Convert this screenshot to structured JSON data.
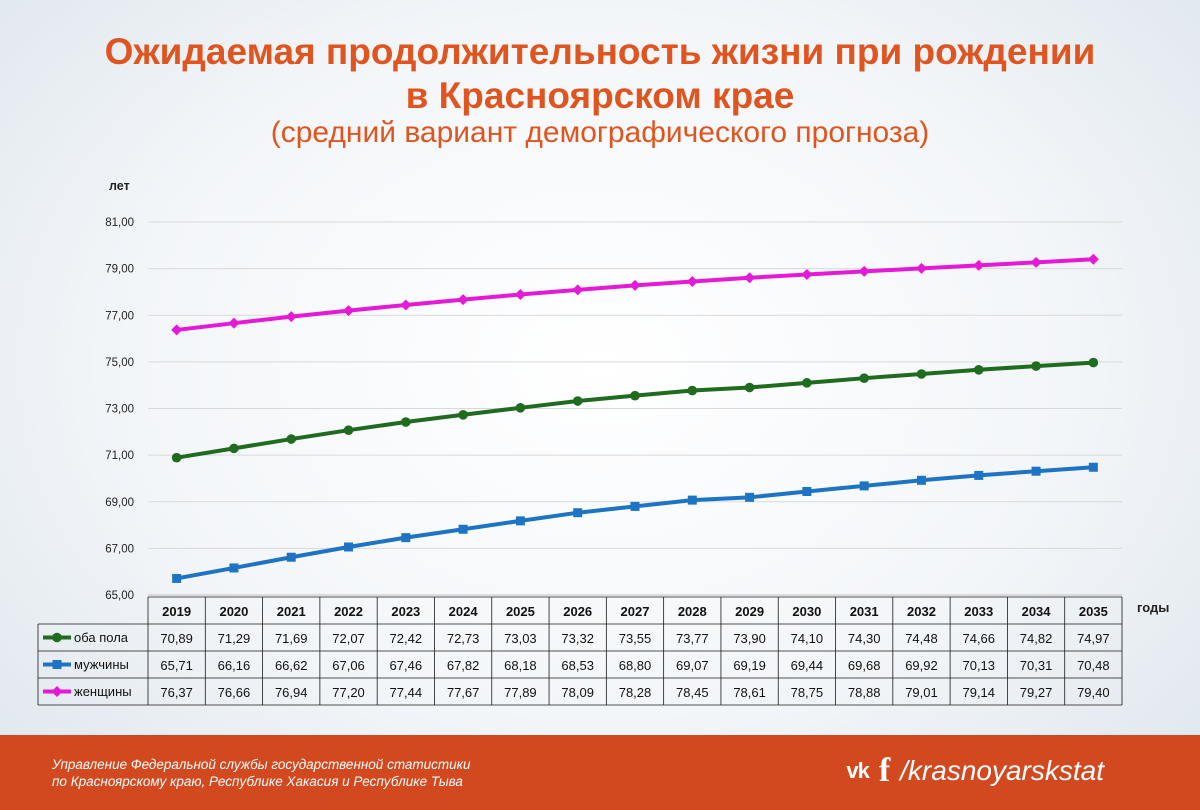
{
  "header": {
    "title_line1": "Ожидаемая продолжительность жизни при рождении",
    "title_line2": "в Красноярском крае",
    "subtitle": "(средний вариант демографического прогноза)"
  },
  "chart_data": {
    "type": "line",
    "ylabel": "лет",
    "xlabel": "годы",
    "ylim": [
      65,
      81
    ],
    "yticks": [
      "65,00",
      "67,00",
      "69,00",
      "71,00",
      "73,00",
      "75,00",
      "77,00",
      "79,00",
      "81,00"
    ],
    "categories": [
      "2019",
      "2020",
      "2021",
      "2022",
      "2023",
      "2024",
      "2025",
      "2026",
      "2027",
      "2028",
      "2029",
      "2030",
      "2031",
      "2032",
      "2033",
      "2034",
      "2035"
    ],
    "grid": true,
    "legend": "data-table",
    "series": [
      {
        "name": "оба пола",
        "color": "#1f6b1f",
        "marker": "circle",
        "values": [
          70.89,
          71.29,
          71.69,
          72.07,
          72.42,
          72.73,
          73.03,
          73.32,
          73.55,
          73.77,
          73.9,
          74.1,
          74.3,
          74.48,
          74.66,
          74.82,
          74.97
        ],
        "labels": [
          "70,89",
          "71,29",
          "71,69",
          "72,07",
          "72,42",
          "72,73",
          "73,03",
          "73,32",
          "73,55",
          "73,77",
          "73,90",
          "74,10",
          "74,30",
          "74,48",
          "74,66",
          "74,82",
          "74,97"
        ]
      },
      {
        "name": "мужчины",
        "color": "#1e74c4",
        "marker": "square",
        "values": [
          65.71,
          66.16,
          66.62,
          67.06,
          67.46,
          67.82,
          68.18,
          68.53,
          68.8,
          69.07,
          69.19,
          69.44,
          69.68,
          69.92,
          70.13,
          70.31,
          70.48
        ],
        "labels": [
          "65,71",
          "66,16",
          "66,62",
          "67,06",
          "67,46",
          "67,82",
          "68,18",
          "68,53",
          "68,80",
          "69,07",
          "69,19",
          "69,44",
          "69,68",
          "69,92",
          "70,13",
          "70,31",
          "70,48"
        ]
      },
      {
        "name": "женщины",
        "color": "#e41ad6",
        "marker": "diamond",
        "values": [
          76.37,
          76.66,
          76.94,
          77.2,
          77.44,
          77.67,
          77.89,
          78.09,
          78.28,
          78.45,
          78.61,
          78.75,
          78.88,
          79.01,
          79.14,
          79.27,
          79.4
        ],
        "labels": [
          "76,37",
          "76,66",
          "76,94",
          "77,20",
          "77,44",
          "77,67",
          "77,89",
          "78,09",
          "78,28",
          "78,45",
          "78,61",
          "78,75",
          "78,88",
          "79,01",
          "79,14",
          "79,27",
          "79,40"
        ]
      }
    ]
  },
  "footer": {
    "org_line1": "Управление Федеральной службы государственной статистики",
    "org_line2": "по Красноярскому краю, Республике Хакасия и Республике Тыва",
    "vk_icon": "vk-icon",
    "facebook_icon": "facebook-icon",
    "handle": "/krasnoyarskstat",
    "background": "#d2481f"
  }
}
